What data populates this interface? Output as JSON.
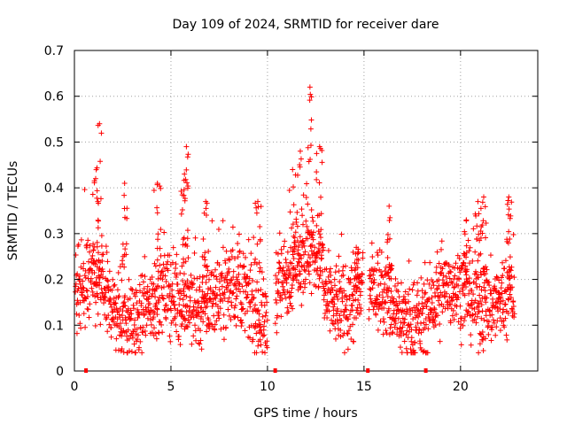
{
  "chart_data": {
    "type": "scatter",
    "title": "Day 109 of 2024, SRMTID for receiver dare",
    "xlabel": "GPS time / hours",
    "ylabel": "SRMTID / TECUs",
    "xlim": [
      0,
      24
    ],
    "ylim": [
      0,
      0.7
    ],
    "x_ticks": [
      0,
      5,
      10,
      15,
      20
    ],
    "y_ticks": [
      0,
      0.1,
      0.2,
      0.3,
      0.4,
      0.5,
      0.6,
      0.7
    ],
    "x_tick_labels": [
      "0",
      "5",
      "10",
      "15",
      "20"
    ],
    "y_tick_labels": [
      "0",
      "0.1",
      "0.2",
      "0.3",
      "0.4",
      "0.5",
      "0.6",
      "0.7"
    ],
    "grid": true,
    "marker": "+",
    "color": "#ff0000",
    "gap_markers_x": [
      0.6,
      10.4,
      15.2,
      18.2
    ],
    "series": [
      {
        "name": "SRMTID",
        "description_of_envelope": "median around 0.15 TECU with peaks",
        "peaks": [
          {
            "x": 1.3,
            "y": 0.54
          },
          {
            "x": 1.1,
            "y": 0.42
          },
          {
            "x": 2.6,
            "y": 0.41
          },
          {
            "x": 4.3,
            "y": 0.41
          },
          {
            "x": 5.8,
            "y": 0.49
          },
          {
            "x": 5.7,
            "y": 0.43
          },
          {
            "x": 6.8,
            "y": 0.37
          },
          {
            "x": 9.5,
            "y": 0.37
          },
          {
            "x": 11.3,
            "y": 0.44
          },
          {
            "x": 11.7,
            "y": 0.48
          },
          {
            "x": 12.2,
            "y": 0.62
          },
          {
            "x": 12.7,
            "y": 0.49
          },
          {
            "x": 14.6,
            "y": 0.27
          },
          {
            "x": 16.3,
            "y": 0.36
          },
          {
            "x": 20.3,
            "y": 0.33
          },
          {
            "x": 20.9,
            "y": 0.37
          },
          {
            "x": 21.2,
            "y": 0.38
          },
          {
            "x": 22.5,
            "y": 0.38
          }
        ]
      }
    ]
  }
}
